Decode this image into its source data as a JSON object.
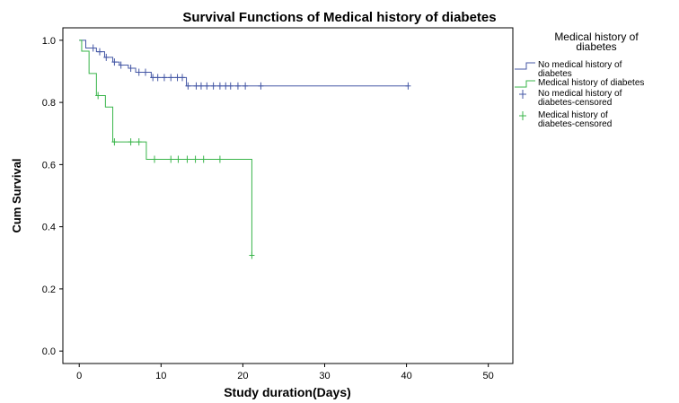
{
  "chart_data": {
    "type": "line",
    "title": "Survival Functions of Medical history of diabetes",
    "xlabel": "Study duration(Days)",
    "ylabel": "Cum Survival",
    "xlim": [
      -2,
      53
    ],
    "ylim": [
      -0.04,
      1.04
    ],
    "xticks": [
      0,
      10,
      20,
      30,
      40,
      50
    ],
    "yticks": [
      0.0,
      0.2,
      0.4,
      0.6,
      0.8,
      1.0
    ],
    "xtick_labels": [
      "0",
      "10",
      "20",
      "30",
      "40",
      "50"
    ],
    "ytick_labels": [
      "0.0",
      "0.2",
      "0.4",
      "0.6",
      "0.8",
      "1.0"
    ],
    "grid": false,
    "legend": {
      "title": "Medical history of diabetes",
      "placement": "right",
      "entries": [
        {
          "label": "No medical history of diabetes",
          "kind": "line",
          "color": "#4457a5"
        },
        {
          "label": "Medical history of diabetes",
          "kind": "line",
          "color": "#39b54a"
        },
        {
          "label": "No medical history of diabetes-censored",
          "kind": "censor",
          "color": "#4457a5"
        },
        {
          "label": "Medical history of diabetes-censored",
          "kind": "censor",
          "color": "#39b54a"
        }
      ]
    },
    "series": [
      {
        "name": "No medical history of diabetes",
        "color": "#4457a5",
        "steps": [
          [
            0,
            1.0
          ],
          [
            0.8,
            0.975
          ],
          [
            2.1,
            0.963
          ],
          [
            3.1,
            0.945
          ],
          [
            4.1,
            0.93
          ],
          [
            4.9,
            0.92
          ],
          [
            6.0,
            0.91
          ],
          [
            6.9,
            0.897
          ],
          [
            8.8,
            0.88
          ],
          [
            13.1,
            0.853
          ],
          [
            40.2,
            0.853
          ]
        ],
        "censored": [
          [
            1.7,
            0.975
          ],
          [
            2.5,
            0.963
          ],
          [
            3.3,
            0.945
          ],
          [
            4.3,
            0.93
          ],
          [
            5.1,
            0.92
          ],
          [
            6.3,
            0.91
          ],
          [
            7.3,
            0.897
          ],
          [
            8.1,
            0.897
          ],
          [
            9.0,
            0.88
          ],
          [
            9.6,
            0.88
          ],
          [
            10.4,
            0.88
          ],
          [
            11.2,
            0.88
          ],
          [
            12.0,
            0.88
          ],
          [
            12.6,
            0.88
          ],
          [
            13.3,
            0.853
          ],
          [
            14.3,
            0.853
          ],
          [
            14.9,
            0.853
          ],
          [
            15.6,
            0.853
          ],
          [
            16.4,
            0.853
          ],
          [
            17.2,
            0.853
          ],
          [
            17.9,
            0.853
          ],
          [
            18.5,
            0.853
          ],
          [
            19.4,
            0.853
          ],
          [
            20.3,
            0.853
          ],
          [
            22.2,
            0.853
          ],
          [
            40.2,
            0.853
          ]
        ]
      },
      {
        "name": "Medical history of diabetes",
        "color": "#39b54a",
        "steps": [
          [
            0,
            1.0
          ],
          [
            0.3,
            0.965
          ],
          [
            1.2,
            0.893
          ],
          [
            2.1,
            0.822
          ],
          [
            3.2,
            0.785
          ],
          [
            4.1,
            0.673
          ],
          [
            8.2,
            0.617
          ],
          [
            21.1,
            0.308
          ]
        ],
        "censored": [
          [
            2.3,
            0.822
          ],
          [
            4.3,
            0.673
          ],
          [
            6.3,
            0.673
          ],
          [
            7.3,
            0.673
          ],
          [
            9.2,
            0.617
          ],
          [
            11.2,
            0.617
          ],
          [
            12.1,
            0.617
          ],
          [
            13.2,
            0.617
          ],
          [
            14.2,
            0.617
          ],
          [
            15.2,
            0.617
          ],
          [
            17.2,
            0.617
          ],
          [
            21.1,
            0.308
          ]
        ]
      }
    ]
  }
}
